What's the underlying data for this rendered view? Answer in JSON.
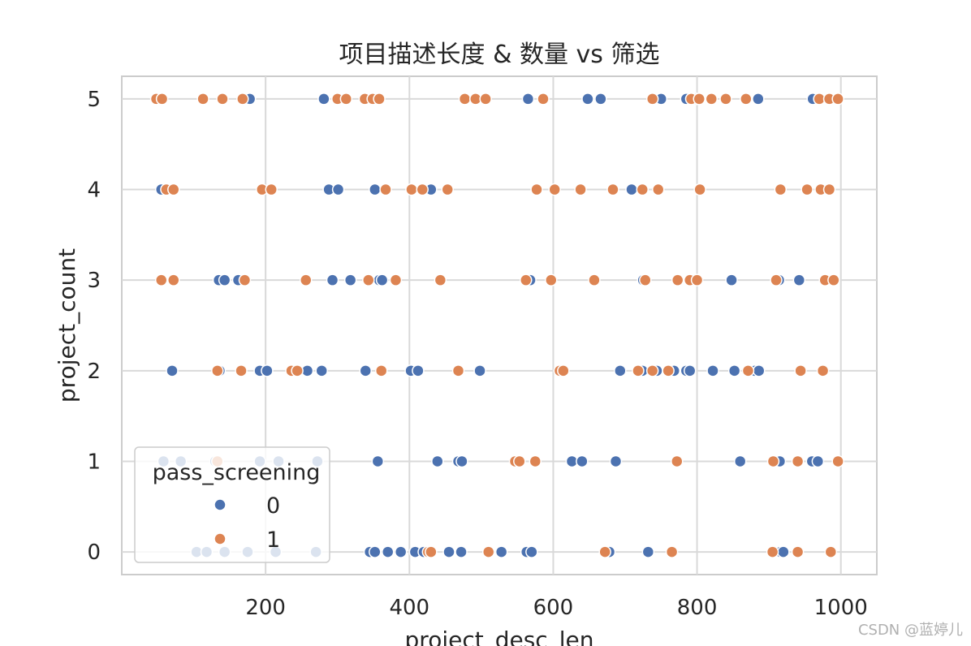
{
  "chart_data": {
    "type": "scatter",
    "title": "项目描述长度 & 数量 vs 筛选",
    "xlabel": "project_desc_len",
    "ylabel": "project_count",
    "xlim": [
      0,
      1050
    ],
    "ylim": [
      -0.25,
      5.25
    ],
    "xticks": [
      200,
      400,
      600,
      800,
      1000
    ],
    "yticks": [
      0,
      1,
      2,
      3,
      4,
      5
    ],
    "grid": true,
    "legend": {
      "title": "pass_screening",
      "placement": "lower-left",
      "entries": [
        {
          "label": "0",
          "color": "#4c72b0"
        },
        {
          "label": "1",
          "color": "#dd8452"
        }
      ]
    },
    "series": [
      {
        "name": "0",
        "color": "#4c72b0",
        "points": [
          [
            178,
            5
          ],
          [
            281,
            5
          ],
          [
            565,
            5
          ],
          [
            648,
            5
          ],
          [
            666,
            5
          ],
          [
            750,
            5
          ],
          [
            785,
            5
          ],
          [
            798,
            5
          ],
          [
            885,
            5
          ],
          [
            961,
            5
          ],
          [
            55,
            4
          ],
          [
            288,
            4
          ],
          [
            301,
            4
          ],
          [
            352,
            4
          ],
          [
            430,
            4
          ],
          [
            709,
            4
          ],
          [
            135,
            3
          ],
          [
            143,
            3
          ],
          [
            162,
            3
          ],
          [
            293,
            3
          ],
          [
            318,
            3
          ],
          [
            358,
            3
          ],
          [
            362,
            3
          ],
          [
            568,
            3
          ],
          [
            725,
            3
          ],
          [
            848,
            3
          ],
          [
            914,
            3
          ],
          [
            942,
            3
          ],
          [
            70,
            2
          ],
          [
            136,
            2
          ],
          [
            192,
            2
          ],
          [
            202,
            2
          ],
          [
            258,
            2
          ],
          [
            278,
            2
          ],
          [
            339,
            2
          ],
          [
            402,
            2
          ],
          [
            412,
            2
          ],
          [
            498,
            2
          ],
          [
            693,
            2
          ],
          [
            724,
            2
          ],
          [
            744,
            2
          ],
          [
            768,
            2
          ],
          [
            785,
            2
          ],
          [
            790,
            2
          ],
          [
            822,
            2
          ],
          [
            852,
            2
          ],
          [
            880,
            2
          ],
          [
            886,
            2
          ],
          [
            58,
            1
          ],
          [
            82,
            1
          ],
          [
            130,
            1
          ],
          [
            192,
            1
          ],
          [
            218,
            1
          ],
          [
            272,
            1
          ],
          [
            356,
            1
          ],
          [
            439,
            1
          ],
          [
            468,
            1
          ],
          [
            473,
            1
          ],
          [
            626,
            1
          ],
          [
            640,
            1
          ],
          [
            687,
            1
          ],
          [
            860,
            1
          ],
          [
            915,
            1
          ],
          [
            960,
            1
          ],
          [
            968,
            1
          ],
          [
            104,
            0
          ],
          [
            118,
            0
          ],
          [
            143,
            0
          ],
          [
            175,
            0
          ],
          [
            214,
            0
          ],
          [
            270,
            0
          ],
          [
            345,
            0
          ],
          [
            352,
            0
          ],
          [
            370,
            0
          ],
          [
            388,
            0
          ],
          [
            408,
            0
          ],
          [
            420,
            0
          ],
          [
            430,
            0
          ],
          [
            455,
            0
          ],
          [
            472,
            0
          ],
          [
            528,
            0
          ],
          [
            563,
            0
          ],
          [
            570,
            0
          ],
          [
            678,
            0
          ],
          [
            732,
            0
          ],
          [
            916,
            0
          ],
          [
            920,
            0
          ]
        ]
      },
      {
        "name": "1",
        "color": "#dd8452",
        "points": [
          [
            48,
            5
          ],
          [
            56,
            5
          ],
          [
            113,
            5
          ],
          [
            140,
            5
          ],
          [
            168,
            5
          ],
          [
            300,
            5
          ],
          [
            312,
            5
          ],
          [
            338,
            5
          ],
          [
            349,
            5
          ],
          [
            358,
            5
          ],
          [
            477,
            5
          ],
          [
            492,
            5
          ],
          [
            506,
            5
          ],
          [
            586,
            5
          ],
          [
            738,
            5
          ],
          [
            792,
            5
          ],
          [
            803,
            5
          ],
          [
            820,
            5
          ],
          [
            840,
            5
          ],
          [
            868,
            5
          ],
          [
            970,
            5
          ],
          [
            984,
            5
          ],
          [
            996,
            5
          ],
          [
            62,
            4
          ],
          [
            72,
            4
          ],
          [
            195,
            4
          ],
          [
            208,
            4
          ],
          [
            367,
            4
          ],
          [
            403,
            4
          ],
          [
            418,
            4
          ],
          [
            453,
            4
          ],
          [
            577,
            4
          ],
          [
            602,
            4
          ],
          [
            638,
            4
          ],
          [
            683,
            4
          ],
          [
            724,
            4
          ],
          [
            746,
            4
          ],
          [
            804,
            4
          ],
          [
            916,
            4
          ],
          [
            953,
            4
          ],
          [
            972,
            4
          ],
          [
            984,
            4
          ],
          [
            55,
            3
          ],
          [
            72,
            3
          ],
          [
            171,
            3
          ],
          [
            256,
            3
          ],
          [
            343,
            3
          ],
          [
            381,
            3
          ],
          [
            443,
            3
          ],
          [
            562,
            3
          ],
          [
            597,
            3
          ],
          [
            657,
            3
          ],
          [
            728,
            3
          ],
          [
            773,
            3
          ],
          [
            790,
            3
          ],
          [
            800,
            3
          ],
          [
            910,
            3
          ],
          [
            978,
            3
          ],
          [
            990,
            3
          ],
          [
            133,
            2
          ],
          [
            166,
            2
          ],
          [
            236,
            2
          ],
          [
            244,
            2
          ],
          [
            361,
            2
          ],
          [
            468,
            2
          ],
          [
            609,
            2
          ],
          [
            614,
            2
          ],
          [
            718,
            2
          ],
          [
            738,
            2
          ],
          [
            760,
            2
          ],
          [
            871,
            2
          ],
          [
            944,
            2
          ],
          [
            975,
            2
          ],
          [
            133,
            1
          ],
          [
            547,
            1
          ],
          [
            553,
            1
          ],
          [
            575,
            1
          ],
          [
            772,
            1
          ],
          [
            906,
            1
          ],
          [
            940,
            1
          ],
          [
            996,
            1
          ],
          [
            426,
            0
          ],
          [
            430,
            0
          ],
          [
            510,
            0
          ],
          [
            672,
            0
          ],
          [
            765,
            0
          ],
          [
            905,
            0
          ],
          [
            940,
            0
          ],
          [
            986,
            0
          ]
        ]
      }
    ]
  },
  "watermark": "CSDN @蓝婷儿"
}
